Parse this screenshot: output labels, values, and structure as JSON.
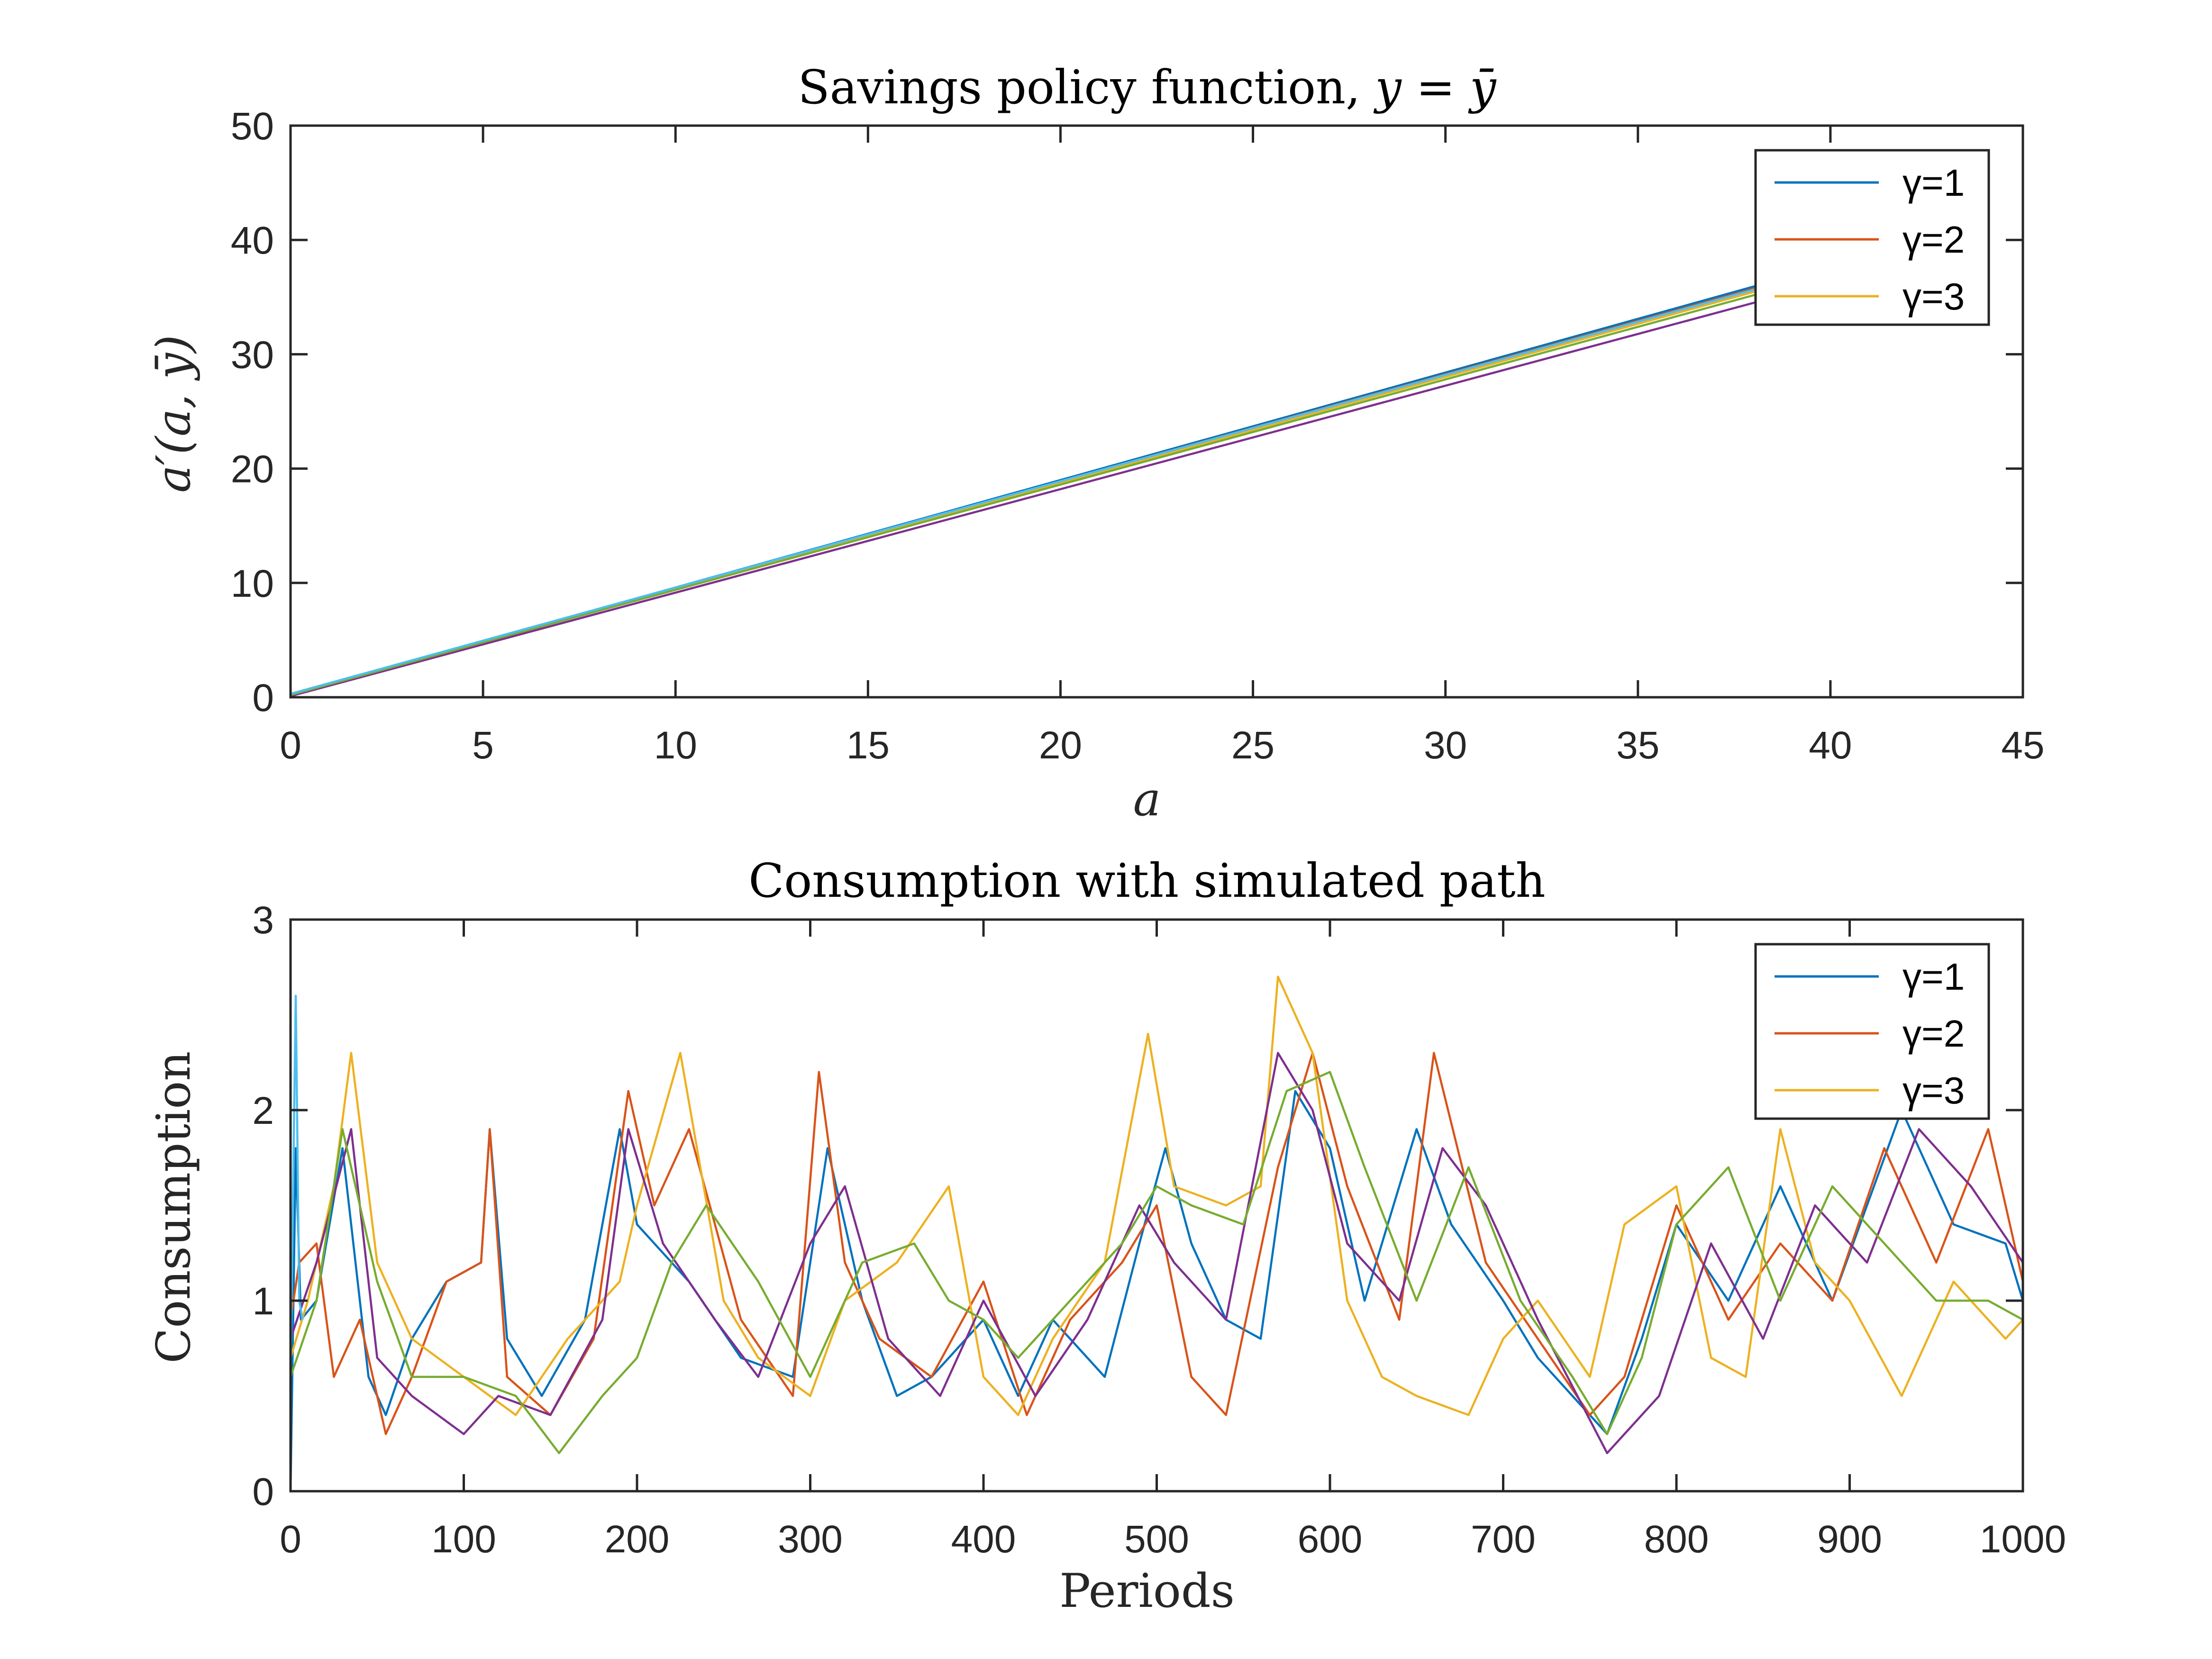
{
  "chart_data": [
    {
      "type": "line",
      "title": "Savings policy function, y = ȳ",
      "title_prefix": "Savings policy function, ",
      "title_math": "y = ȳ",
      "xlabel": "a",
      "ylabel": "a′(a, ȳ)",
      "xlim": [
        0,
        45
      ],
      "ylim": [
        0,
        50
      ],
      "xticks": [
        "0",
        "5",
        "10",
        "15",
        "20",
        "25",
        "30",
        "35",
        "40",
        "45"
      ],
      "yticks": [
        "0",
        "10",
        "20",
        "30",
        "40",
        "50"
      ],
      "grid": false,
      "legend_position": "top-right",
      "legend": [
        "γ=1",
        "γ=2",
        "γ=3"
      ],
      "series": [
        {
          "name": "γ=1",
          "color": "#0072BD",
          "x": [
            0,
            40
          ],
          "y": [
            0.2,
            37.8
          ]
        },
        {
          "name": "γ=2",
          "color": "#D95319",
          "x": [
            0,
            40
          ],
          "y": [
            0.2,
            37.6
          ]
        },
        {
          "name": "γ=3",
          "color": "#EDB120",
          "x": [
            0,
            40
          ],
          "y": [
            0.2,
            37.3
          ]
        },
        {
          "color": "#7E2F8E",
          "x": [
            0,
            40
          ],
          "y": [
            0.1,
            36.3
          ]
        },
        {
          "color": "#77AC30",
          "x": [
            0,
            40
          ],
          "y": [
            0.2,
            37.0
          ]
        },
        {
          "color": "#4DBEEE",
          "x": [
            0,
            40
          ],
          "y": [
            0.3,
            37.5
          ]
        }
      ]
    },
    {
      "type": "line",
      "title": "Consumption with simulated path",
      "xlabel": "Periods",
      "ylabel": "Consumption",
      "xlim": [
        0,
        1000
      ],
      "ylim": [
        0,
        3
      ],
      "xticks": [
        "0",
        "100",
        "200",
        "300",
        "400",
        "500",
        "600",
        "700",
        "800",
        "900",
        "1000"
      ],
      "yticks": [
        "0",
        "1",
        "2",
        "3"
      ],
      "grid": false,
      "legend_position": "top-right",
      "legend": [
        "γ=1",
        "γ=2",
        "γ=3"
      ],
      "series": [
        {
          "name": "γ=1",
          "color": "#0072BD",
          "x": [
            0,
            3,
            6,
            15,
            30,
            45,
            55,
            70,
            90,
            110,
            115,
            125,
            145,
            170,
            190,
            200,
            230,
            260,
            290,
            300,
            310,
            330,
            350,
            370,
            400,
            420,
            440,
            470,
            490,
            505,
            520,
            540,
            560,
            580,
            600,
            620,
            650,
            670,
            700,
            720,
            760,
            780,
            800,
            830,
            860,
            890,
            930,
            960,
            990,
            1000
          ],
          "y": [
            0,
            1.8,
            0.9,
            1.0,
            1.8,
            0.6,
            0.4,
            0.8,
            1.1,
            1.2,
            1.9,
            0.8,
            0.5,
            0.9,
            1.9,
            1.4,
            1.1,
            0.7,
            0.6,
            1.2,
            1.8,
            1.0,
            0.5,
            0.6,
            0.9,
            0.5,
            0.9,
            0.6,
            1.3,
            1.8,
            1.3,
            0.9,
            0.8,
            2.1,
            1.8,
            1.0,
            1.9,
            1.4,
            1.0,
            0.7,
            0.3,
            0.8,
            1.4,
            1.0,
            1.6,
            1.0,
            2.0,
            1.4,
            1.3,
            1.0
          ]
        },
        {
          "name": "γ=2",
          "color": "#D95319",
          "x": [
            0,
            5,
            15,
            25,
            40,
            55,
            70,
            90,
            110,
            115,
            125,
            150,
            175,
            195,
            210,
            230,
            260,
            290,
            305,
            320,
            340,
            370,
            400,
            425,
            450,
            480,
            500,
            520,
            540,
            570,
            590,
            610,
            640,
            660,
            690,
            720,
            750,
            770,
            800,
            830,
            860,
            890,
            920,
            950,
            980,
            1000
          ],
          "y": [
            0.9,
            1.2,
            1.3,
            0.6,
            0.9,
            0.3,
            0.6,
            1.1,
            1.2,
            1.9,
            0.6,
            0.4,
            0.8,
            2.1,
            1.5,
            1.9,
            0.9,
            0.5,
            2.2,
            1.2,
            0.8,
            0.6,
            1.1,
            0.4,
            0.9,
            1.2,
            1.5,
            0.6,
            0.4,
            1.7,
            2.3,
            1.6,
            0.9,
            2.3,
            1.2,
            0.8,
            0.4,
            0.6,
            1.5,
            0.9,
            1.3,
            1.0,
            1.8,
            1.2,
            1.9,
            1.1
          ]
        },
        {
          "name": "γ=3",
          "color": "#EDB120",
          "x": [
            0,
            10,
            25,
            35,
            50,
            70,
            100,
            130,
            160,
            190,
            200,
            225,
            250,
            270,
            300,
            320,
            350,
            380,
            400,
            420,
            440,
            470,
            495,
            510,
            540,
            560,
            570,
            590,
            610,
            630,
            650,
            680,
            700,
            720,
            750,
            770,
            800,
            820,
            840,
            860,
            880,
            900,
            930,
            960,
            990,
            1000
          ],
          "y": [
            0.7,
            1.0,
            1.6,
            2.3,
            1.2,
            0.8,
            0.6,
            0.4,
            0.8,
            1.1,
            1.5,
            2.3,
            1.0,
            0.7,
            0.5,
            1.0,
            1.2,
            1.6,
            0.6,
            0.4,
            0.8,
            1.2,
            2.4,
            1.6,
            1.5,
            1.6,
            2.7,
            2.3,
            1.0,
            0.6,
            0.5,
            0.4,
            0.8,
            1.0,
            0.6,
            1.4,
            1.6,
            0.7,
            0.6,
            1.9,
            1.2,
            1.0,
            0.5,
            1.1,
            0.8,
            0.9
          ]
        },
        {
          "color": "#7E2F8E",
          "x": [
            0,
            15,
            35,
            50,
            70,
            100,
            120,
            150,
            180,
            195,
            215,
            245,
            270,
            300,
            320,
            345,
            375,
            400,
            430,
            460,
            490,
            510,
            540,
            570,
            590,
            610,
            640,
            665,
            690,
            720,
            760,
            790,
            820,
            850,
            880,
            910,
            940,
            970,
            1000
          ],
          "y": [
            0.8,
            1.2,
            1.9,
            0.7,
            0.5,
            0.3,
            0.5,
            0.4,
            0.9,
            1.9,
            1.3,
            0.9,
            0.6,
            1.3,
            1.6,
            0.8,
            0.5,
            1.0,
            0.5,
            0.9,
            1.5,
            1.2,
            0.9,
            2.3,
            2.0,
            1.3,
            1.0,
            1.8,
            1.5,
            0.9,
            0.2,
            0.5,
            1.3,
            0.8,
            1.5,
            1.2,
            1.9,
            1.6,
            1.2
          ]
        },
        {
          "color": "#77AC30",
          "x": [
            0,
            15,
            30,
            50,
            70,
            100,
            130,
            155,
            180,
            200,
            220,
            240,
            270,
            300,
            330,
            360,
            380,
            400,
            420,
            440,
            460,
            480,
            500,
            520,
            550,
            575,
            600,
            620,
            650,
            680,
            710,
            740,
            760,
            780,
            800,
            830,
            860,
            890,
            920,
            950,
            980,
            1000
          ],
          "y": [
            0.6,
            1.0,
            1.9,
            1.1,
            0.6,
            0.6,
            0.5,
            0.2,
            0.5,
            0.7,
            1.2,
            1.5,
            1.1,
            0.6,
            1.2,
            1.3,
            1.0,
            0.9,
            0.7,
            0.9,
            1.1,
            1.3,
            1.6,
            1.5,
            1.4,
            2.1,
            2.2,
            1.7,
            1.0,
            1.7,
            1.0,
            0.6,
            0.3,
            0.7,
            1.4,
            1.7,
            1.0,
            1.6,
            1.3,
            1.0,
            1.0,
            0.9
          ]
        },
        {
          "color": "#4DBEEE",
          "x": [
            0,
            3,
            5,
            7
          ],
          "y": [
            0.6,
            2.6,
            1.0,
            0.9
          ]
        }
      ]
    }
  ]
}
